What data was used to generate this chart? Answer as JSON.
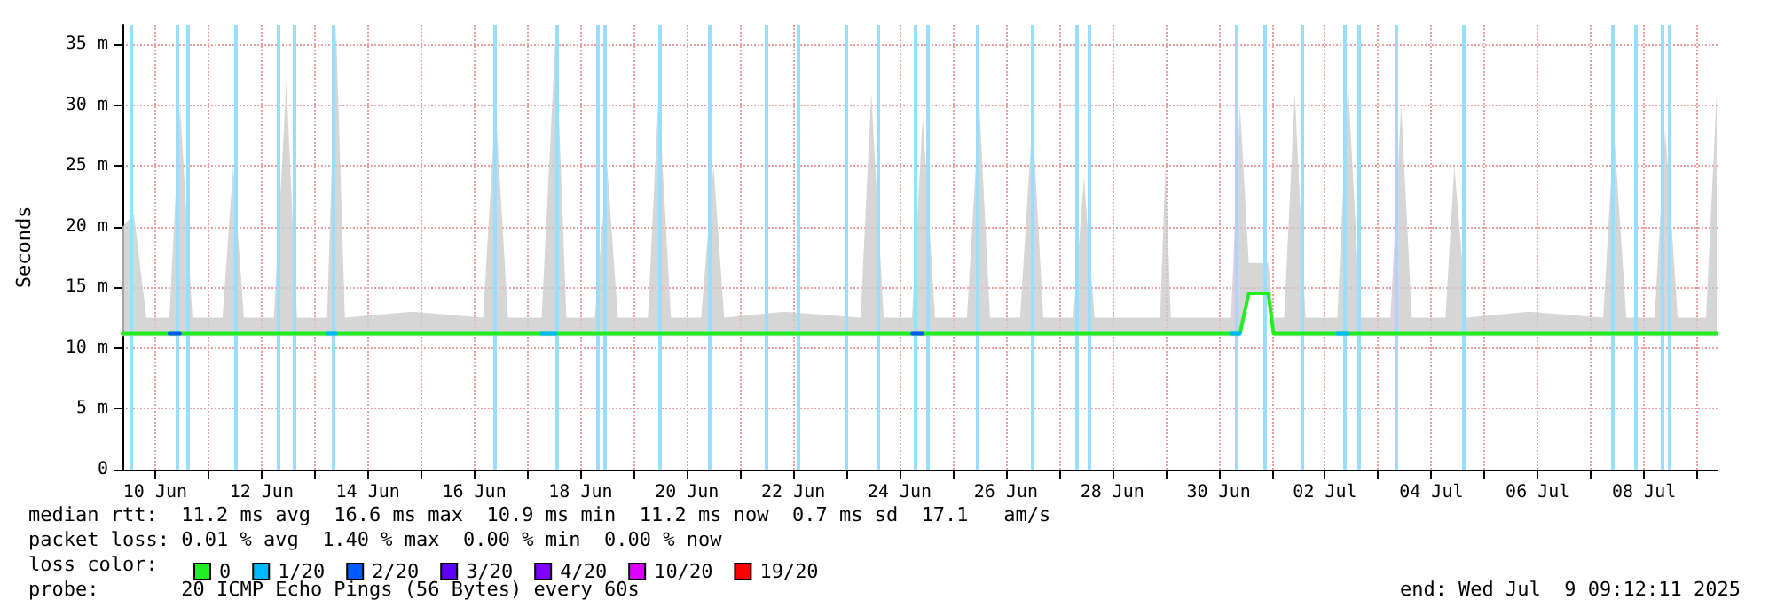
{
  "chart_data": {
    "type": "line",
    "ylabel": "Seconds",
    "legend_title": "loss color:",
    "legend": "bottom",
    "grid": true,
    "marker": "none",
    "line_style": "solid",
    "xlim": [
      "2025-06-09T09:12",
      "2025-07-09T09:12"
    ],
    "ylim": [
      0,
      36.6
    ],
    "yticks": [
      {
        "value": 0,
        "label": "0"
      },
      {
        "value": 5,
        "label": "5 m"
      },
      {
        "value": 10,
        "label": "10 m"
      },
      {
        "value": 15,
        "label": "15 m"
      },
      {
        "value": 20,
        "label": "20 m"
      },
      {
        "value": 25,
        "label": "25 m"
      },
      {
        "value": 30,
        "label": "30 m"
      },
      {
        "value": 35,
        "label": "35 m"
      }
    ],
    "xticks": [
      {
        "value": "2025-06-10T00:00",
        "label": "10 Jun"
      },
      {
        "value": "2025-06-11T00:00",
        "label": null
      },
      {
        "value": "2025-06-12T00:00",
        "label": "12 Jun"
      },
      {
        "value": "2025-06-13T00:00",
        "label": null
      },
      {
        "value": "2025-06-14T00:00",
        "label": "14 Jun"
      },
      {
        "value": "2025-06-15T00:00",
        "label": null
      },
      {
        "value": "2025-06-16T00:00",
        "label": "16 Jun"
      },
      {
        "value": "2025-06-17T00:00",
        "label": null
      },
      {
        "value": "2025-06-18T00:00",
        "label": "18 Jun"
      },
      {
        "value": "2025-06-19T00:00",
        "label": null
      },
      {
        "value": "2025-06-20T00:00",
        "label": "20 Jun"
      },
      {
        "value": "2025-06-21T00:00",
        "label": null
      },
      {
        "value": "2025-06-22T00:00",
        "label": "22 Jun"
      },
      {
        "value": "2025-06-23T00:00",
        "label": null
      },
      {
        "value": "2025-06-24T00:00",
        "label": "24 Jun"
      },
      {
        "value": "2025-06-25T00:00",
        "label": null
      },
      {
        "value": "2025-06-26T00:00",
        "label": "26 Jun"
      },
      {
        "value": "2025-06-27T00:00",
        "label": null
      },
      {
        "value": "2025-06-28T00:00",
        "label": "28 Jun"
      },
      {
        "value": "2025-06-29T00:00",
        "label": null
      },
      {
        "value": "2025-06-30T00:00",
        "label": "30 Jun"
      },
      {
        "value": "2025-07-01T00:00",
        "label": null
      },
      {
        "value": "2025-07-02T00:00",
        "label": "02 Jul"
      },
      {
        "value": "2025-07-03T00:00",
        "label": null
      },
      {
        "value": "2025-07-04T00:00",
        "label": "04 Jul"
      },
      {
        "value": "2025-07-05T00:00",
        "label": null
      },
      {
        "value": "2025-07-06T00:00",
        "label": "06 Jul"
      },
      {
        "value": "2025-07-07T00:00",
        "label": null
      },
      {
        "value": "2025-07-08T00:00",
        "label": "08 Jul"
      },
      {
        "value": "2025-07-09T00:00",
        "label": null
      }
    ],
    "x": [
      "2025-06-09T09:12",
      "2025-06-09T14:24",
      "2025-06-09T20:00",
      "2025-06-10T06:24",
      "2025-06-10T11:12",
      "2025-06-10T16:48",
      "2025-06-11T06:24",
      "2025-06-11T11:12",
      "2025-06-11T16:00",
      "2025-06-12T05:36",
      "2025-06-12T11:12",
      "2025-06-12T16:00",
      "2025-06-13T05:36",
      "2025-06-13T09:36",
      "2025-06-13T13:36",
      "2025-06-14T20:00",
      "2025-06-16T04:00",
      "2025-06-16T09:36",
      "2025-06-16T15:12",
      "2025-06-17T06:24",
      "2025-06-17T12:48",
      "2025-06-17T17:36",
      "2025-06-18T06:24",
      "2025-06-18T12:00",
      "2025-06-18T16:48",
      "2025-06-19T06:24",
      "2025-06-19T11:12",
      "2025-06-19T16:48",
      "2025-06-20T06:24",
      "2025-06-20T12:00",
      "2025-06-20T16:48",
      "2025-06-21T20:00",
      "2025-06-23T06:24",
      "2025-06-23T11:12",
      "2025-06-23T16:48",
      "2025-06-24T05:36",
      "2025-06-24T10:24",
      "2025-06-24T16:00",
      "2025-06-25T06:24",
      "2025-06-25T12:00",
      "2025-06-25T16:48",
      "2025-06-26T06:24",
      "2025-06-26T12:00",
      "2025-06-26T16:48",
      "2025-06-27T06:24",
      "2025-06-27T11:12",
      "2025-06-27T16:00",
      "2025-06-28T21:36",
      "2025-06-29T00:00",
      "2025-06-29T02:24",
      "2025-06-30T05:36",
      "2025-06-30T09:36",
      "2025-06-30T13:36",
      "2025-06-30T22:24",
      "2025-07-01T00:48",
      "2025-07-01T05:36",
      "2025-07-01T10:24",
      "2025-07-01T15:12",
      "2025-07-02T05:36",
      "2025-07-02T10:24",
      "2025-07-02T16:00",
      "2025-07-03T05:36",
      "2025-07-03T10:24",
      "2025-07-03T15:12",
      "2025-07-04T06:24",
      "2025-07-04T10:24",
      "2025-07-04T16:00",
      "2025-07-05T20:00",
      "2025-07-07T05:36",
      "2025-07-07T10:24",
      "2025-07-07T16:00",
      "2025-07-08T04:48",
      "2025-07-08T09:36",
      "2025-07-08T15:12",
      "2025-07-09T04:00",
      "2025-07-09T08:48"
    ],
    "series": [
      {
        "name": "0",
        "color": "#22ee22",
        "values": [
          11.2,
          11.2,
          11.2,
          11.2,
          11.2,
          11.2,
          11.2,
          11.2,
          11.2,
          11.2,
          11.2,
          11.2,
          11.2,
          11.2,
          11.2,
          11.2,
          11.2,
          11.2,
          11.2,
          11.2,
          11.2,
          11.2,
          11.2,
          11.2,
          11.2,
          11.2,
          11.2,
          11.2,
          11.2,
          11.2,
          11.2,
          11.2,
          11.2,
          11.2,
          11.2,
          11.2,
          11.2,
          11.2,
          11.2,
          11.2,
          11.2,
          11.2,
          11.2,
          11.2,
          11.2,
          11.2,
          11.2,
          11.2,
          11.2,
          11.2,
          11.2,
          11.2,
          14.5,
          14.5,
          11.2,
          11.2,
          11.2,
          11.2,
          11.2,
          11.2,
          11.2,
          11.2,
          11.2,
          11.2,
          11.2,
          11.2,
          11.2,
          11.2,
          11.2,
          11.2,
          11.2,
          11.2,
          11.2,
          11.2,
          11.2,
          11.2
        ],
        "lower": [
          11,
          11,
          11,
          11,
          11,
          11,
          11,
          11,
          11,
          11,
          11,
          11,
          11,
          11,
          11,
          11,
          11,
          11,
          11,
          11,
          11,
          11,
          11,
          11,
          11,
          11,
          11,
          11,
          11,
          11,
          11,
          11,
          11,
          11,
          11,
          11,
          11,
          11,
          11,
          11,
          11,
          11,
          11,
          11,
          11,
          11,
          11,
          11,
          11,
          11,
          11,
          11,
          14.5,
          14.5,
          11,
          11,
          11,
          11,
          11,
          11,
          11,
          11,
          11,
          11,
          11,
          11,
          11,
          11,
          11,
          11,
          11,
          11,
          11,
          11,
          11,
          11
        ],
        "upper": [
          20,
          21,
          12.5,
          12.5,
          30,
          12.5,
          12.5,
          25,
          12.5,
          12.5,
          32,
          12.5,
          12.5,
          36.5,
          12.5,
          13,
          12.5,
          30,
          12.5,
          12.5,
          36,
          12.5,
          12.5,
          25,
          12.5,
          12.5,
          31,
          12.5,
          12.5,
          25,
          12.5,
          13,
          12.5,
          31,
          12.5,
          12.5,
          29,
          12.5,
          12.5,
          30,
          12.5,
          12.5,
          29,
          12.5,
          12.5,
          24,
          12.5,
          12.5,
          25,
          12.5,
          12.5,
          30,
          17,
          17,
          12.5,
          12.5,
          31,
          12.5,
          12.5,
          32,
          12.5,
          12.5,
          30,
          12.5,
          12.5,
          25,
          12.5,
          13,
          12.5,
          28,
          12.5,
          12.5,
          28,
          12.5,
          12.5,
          31
        ]
      },
      {
        "name": "1/20",
        "color": "#00b8ff",
        "values": [
          null,
          null,
          null,
          null,
          null,
          null,
          null,
          null,
          null,
          null,
          null,
          null,
          11.2,
          11.2,
          null,
          null,
          null,
          null,
          null,
          11.2,
          11.2,
          null,
          null,
          null,
          null,
          null,
          null,
          null,
          null,
          null,
          null,
          null,
          null,
          null,
          null,
          null,
          null,
          null,
          null,
          null,
          null,
          null,
          null,
          null,
          null,
          null,
          null,
          null,
          null,
          null,
          11.2,
          11.2,
          null,
          null,
          null,
          null,
          null,
          null,
          11.2,
          11.2,
          null,
          null,
          null,
          null,
          null,
          null,
          null,
          null,
          null,
          null,
          null,
          null,
          null,
          null,
          null,
          null
        ]
      },
      {
        "name": "2/20",
        "color": "#0059ff",
        "values": [
          null,
          null,
          null,
          11.2,
          11.2,
          null,
          null,
          null,
          null,
          null,
          null,
          null,
          null,
          null,
          null,
          null,
          null,
          null,
          null,
          null,
          null,
          null,
          null,
          null,
          null,
          null,
          null,
          null,
          null,
          null,
          null,
          null,
          null,
          null,
          null,
          11.2,
          11.2,
          null,
          null,
          null,
          null,
          null,
          null,
          null,
          null,
          null,
          null,
          null,
          null,
          null,
          null,
          null,
          null,
          null,
          null,
          null,
          null,
          null,
          null,
          null,
          null,
          null,
          null,
          null,
          null,
          null,
          null,
          null,
          null,
          null,
          null,
          null,
          null,
          null,
          null,
          null
        ]
      },
      {
        "name": "3/20",
        "color": "#5e00ff",
        "values": [
          null,
          null,
          null,
          null,
          null,
          null,
          null,
          null,
          null,
          null,
          null,
          null,
          null,
          null,
          null,
          null,
          null,
          null,
          null,
          null,
          null,
          null,
          null,
          null,
          null,
          null,
          null,
          null,
          null,
          null,
          null,
          null,
          null,
          null,
          null,
          null,
          null,
          null,
          null,
          null,
          null,
          null,
          null,
          null,
          null,
          null,
          null,
          null,
          null,
          null,
          null,
          null,
          null,
          null,
          null,
          null,
          null,
          null,
          null,
          null,
          null,
          null,
          null,
          null,
          null,
          null,
          null,
          null,
          null,
          null,
          null,
          null,
          null,
          null,
          null,
          null
        ]
      },
      {
        "name": "4/20",
        "color": "#7e00ff",
        "values": [
          null,
          null,
          null,
          null,
          null,
          null,
          null,
          null,
          null,
          null,
          null,
          null,
          null,
          null,
          null,
          null,
          null,
          null,
          null,
          null,
          null,
          null,
          null,
          null,
          null,
          null,
          null,
          null,
          null,
          null,
          null,
          null,
          null,
          null,
          null,
          null,
          null,
          null,
          null,
          null,
          null,
          null,
          null,
          null,
          null,
          null,
          null,
          null,
          null,
          null,
          null,
          null,
          null,
          null,
          null,
          null,
          null,
          null,
          null,
          null,
          null,
          null,
          null,
          null,
          null,
          null,
          null,
          null,
          null,
          null,
          null,
          null,
          null,
          null,
          null,
          null
        ]
      },
      {
        "name": "10/20",
        "color": "#dd00ff",
        "values": [
          null,
          null,
          null,
          null,
          null,
          null,
          null,
          null,
          null,
          null,
          null,
          null,
          null,
          null,
          null,
          null,
          null,
          null,
          null,
          null,
          null,
          null,
          null,
          null,
          null,
          null,
          null,
          null,
          null,
          null,
          null,
          null,
          null,
          null,
          null,
          null,
          null,
          null,
          null,
          null,
          null,
          null,
          null,
          null,
          null,
          null,
          null,
          null,
          null,
          null,
          null,
          null,
          null,
          null,
          null,
          null,
          null,
          null,
          null,
          null,
          null,
          null,
          null,
          null,
          null,
          null,
          null,
          null,
          null,
          null,
          null,
          null,
          null,
          null,
          null,
          null
        ]
      },
      {
        "name": "19/20",
        "color": "#ff0000",
        "values": [
          null,
          null,
          null,
          null,
          null,
          null,
          null,
          null,
          null,
          null,
          null,
          null,
          null,
          null,
          null,
          null,
          null,
          null,
          null,
          null,
          null,
          null,
          null,
          null,
          null,
          null,
          null,
          null,
          null,
          null,
          null,
          null,
          null,
          null,
          null,
          null,
          null,
          null,
          null,
          null,
          null,
          null,
          null,
          null,
          null,
          null,
          null,
          null,
          null,
          null,
          null,
          null,
          null,
          null,
          null,
          null,
          null,
          null,
          null,
          null,
          null,
          null,
          null,
          null,
          null,
          null,
          null,
          null,
          null,
          null,
          null,
          null,
          null,
          null,
          null,
          null
        ]
      }
    ],
    "ref_lines": [
      {
        "axis": "x",
        "value": "2025-06-09T12:48",
        "color": "#99ddff"
      },
      {
        "axis": "x",
        "value": "2025-06-10T09:36",
        "color": "#99ddff"
      },
      {
        "axis": "x",
        "value": "2025-06-10T14:24",
        "color": "#99ddff"
      },
      {
        "axis": "x",
        "value": "2025-06-11T12:00",
        "color": "#99ddff"
      },
      {
        "axis": "x",
        "value": "2025-06-12T07:12",
        "color": "#99ddff"
      },
      {
        "axis": "x",
        "value": "2025-06-12T14:24",
        "color": "#99ddff"
      },
      {
        "axis": "x",
        "value": "2025-06-13T08:00",
        "color": "#99ddff"
      },
      {
        "axis": "x",
        "value": "2025-06-16T08:48",
        "color": "#99ddff"
      },
      {
        "axis": "x",
        "value": "2025-06-17T13:36",
        "color": "#99ddff"
      },
      {
        "axis": "x",
        "value": "2025-06-18T08:00",
        "color": "#99ddff"
      },
      {
        "axis": "x",
        "value": "2025-06-18T11:12",
        "color": "#99ddff"
      },
      {
        "axis": "x",
        "value": "2025-06-19T12:00",
        "color": "#99ddff"
      },
      {
        "axis": "x",
        "value": "2025-06-20T10:24",
        "color": "#99ddff"
      },
      {
        "axis": "x",
        "value": "2025-06-21T12:00",
        "color": "#99ddff"
      },
      {
        "axis": "x",
        "value": "2025-06-22T02:24",
        "color": "#99ddff"
      },
      {
        "axis": "x",
        "value": "2025-06-23T00:00",
        "color": "#99ddff"
      },
      {
        "axis": "x",
        "value": "2025-06-23T14:24",
        "color": "#99ddff"
      },
      {
        "axis": "x",
        "value": "2025-06-24T07:12",
        "color": "#99ddff"
      },
      {
        "axis": "x",
        "value": "2025-06-24T12:48",
        "color": "#99ddff"
      },
      {
        "axis": "x",
        "value": "2025-06-25T11:12",
        "color": "#99ddff"
      },
      {
        "axis": "x",
        "value": "2025-06-26T12:00",
        "color": "#99ddff"
      },
      {
        "axis": "x",
        "value": "2025-06-27T08:00",
        "color": "#99ddff"
      },
      {
        "axis": "x",
        "value": "2025-06-27T13:36",
        "color": "#99ddff"
      },
      {
        "axis": "x",
        "value": "2025-06-30T08:00",
        "color": "#99ddff"
      },
      {
        "axis": "x",
        "value": "2025-06-30T20:48",
        "color": "#99ddff"
      },
      {
        "axis": "x",
        "value": "2025-07-01T13:36",
        "color": "#99ddff"
      },
      {
        "axis": "x",
        "value": "2025-07-02T08:48",
        "color": "#99ddff"
      },
      {
        "axis": "x",
        "value": "2025-07-02T15:12",
        "color": "#99ddff"
      },
      {
        "axis": "x",
        "value": "2025-07-03T08:00",
        "color": "#99ddff"
      },
      {
        "axis": "x",
        "value": "2025-07-04T14:24",
        "color": "#99ddff"
      },
      {
        "axis": "x",
        "value": "2025-07-07T09:36",
        "color": "#99ddff"
      },
      {
        "axis": "x",
        "value": "2025-07-07T20:00",
        "color": "#99ddff"
      },
      {
        "axis": "x",
        "value": "2025-07-08T08:00",
        "color": "#99ddff"
      },
      {
        "axis": "x",
        "value": "2025-07-08T11:12",
        "color": "#99ddff"
      }
    ],
    "annotations": [
      "median rtt:  11.2 ms avg  16.6 ms max  10.9 ms min  11.2 ms now  0.7 ms sd  17.1   am/s",
      "packet loss: 0.01 % avg  1.40 % max  0.00 % min  0.00 % now",
      "probe:       20 ICMP Echo Pings (56 Bytes) every 60s",
      "end: Wed Jul  9 09:12:11 2025"
    ]
  }
}
